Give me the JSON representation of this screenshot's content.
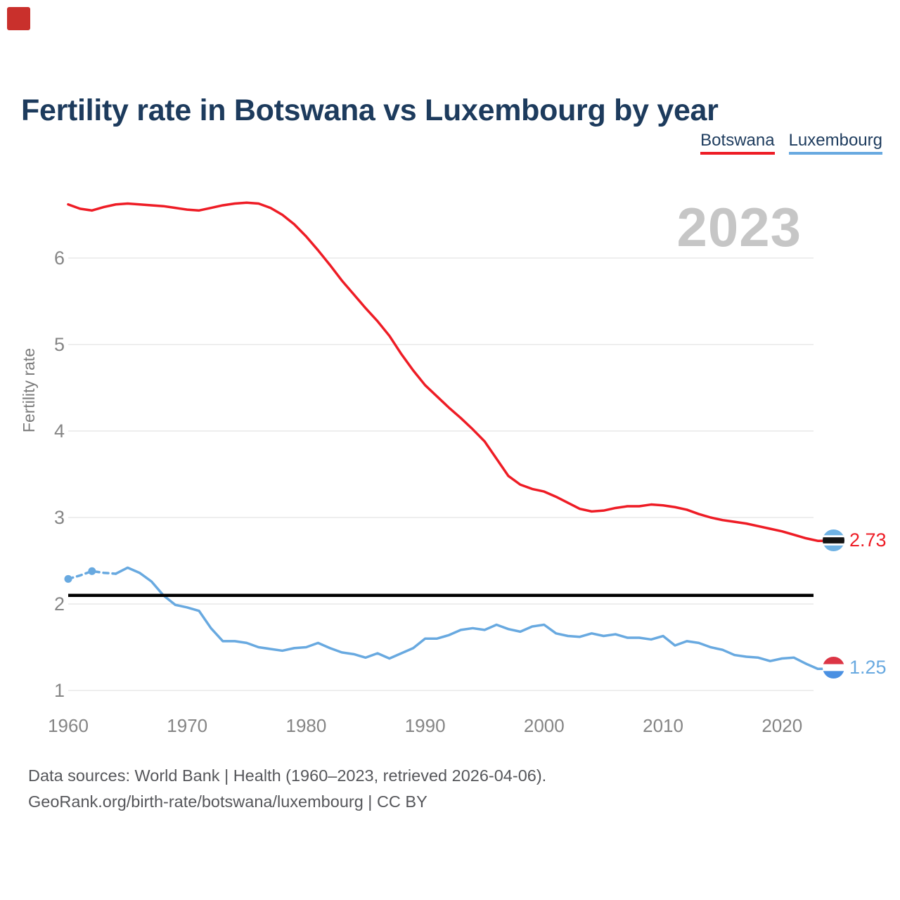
{
  "page": {
    "watermark": "2023",
    "footer": {
      "line1": "Data sources: World Bank | Health (1960–2023, retrieved 2026-04-06).",
      "line2": "GeoRank.org/birth-rate/botswana/luxembourg | CC BY"
    }
  },
  "chart_data": {
    "type": "line",
    "title": "Fertility rate in Botswana vs Luxembourg by year",
    "xlabel": "",
    "ylabel": "Fertility rate",
    "grid": "horizontal",
    "legend_position": "top-right",
    "xlim": [
      1960,
      2023
    ],
    "ylim": [
      1,
      6.8
    ],
    "xticks": [
      1960,
      1970,
      1980,
      1990,
      2000,
      2010,
      2020
    ],
    "yticks": [
      1,
      2,
      3,
      4,
      5,
      6
    ],
    "reference_line": {
      "value": 2.1,
      "color": "#000000"
    },
    "x": [
      1960,
      1961,
      1962,
      1963,
      1964,
      1965,
      1966,
      1967,
      1968,
      1969,
      1970,
      1971,
      1972,
      1973,
      1974,
      1975,
      1976,
      1977,
      1978,
      1979,
      1980,
      1981,
      1982,
      1983,
      1984,
      1985,
      1986,
      1987,
      1988,
      1989,
      1990,
      1991,
      1992,
      1993,
      1994,
      1995,
      1996,
      1997,
      1998,
      1999,
      2000,
      2001,
      2002,
      2003,
      2004,
      2005,
      2006,
      2007,
      2008,
      2009,
      2010,
      2011,
      2012,
      2013,
      2014,
      2015,
      2016,
      2017,
      2018,
      2019,
      2020,
      2021,
      2022,
      2023
    ],
    "series": [
      {
        "name": "Botswana",
        "color": "#ee1c25",
        "end_label": "2.73",
        "flag": "botswana",
        "values": [
          6.62,
          6.57,
          6.55,
          6.59,
          6.62,
          6.63,
          6.62,
          6.61,
          6.6,
          6.58,
          6.56,
          6.55,
          6.58,
          6.61,
          6.63,
          6.64,
          6.63,
          6.58,
          6.5,
          6.39,
          6.25,
          6.09,
          5.92,
          5.74,
          5.58,
          5.42,
          5.27,
          5.1,
          4.89,
          4.7,
          4.53,
          4.4,
          4.27,
          4.15,
          4.02,
          3.88,
          3.68,
          3.48,
          3.38,
          3.33,
          3.3,
          3.24,
          3.17,
          3.1,
          3.07,
          3.08,
          3.11,
          3.13,
          3.13,
          3.15,
          3.14,
          3.12,
          3.09,
          3.04,
          3.0,
          2.97,
          2.95,
          2.93,
          2.9,
          2.87,
          2.84,
          2.8,
          2.76,
          2.73
        ]
      },
      {
        "name": "Luxembourg",
        "color": "#68a9e0",
        "end_label": "1.25",
        "flag": "luxembourg",
        "dashed_until_year": 1964,
        "marker_years": [
          1960,
          1962
        ],
        "values": [
          2.29,
          2.33,
          2.38,
          2.36,
          2.35,
          2.42,
          2.36,
          2.26,
          2.1,
          1.99,
          1.96,
          1.92,
          1.72,
          1.57,
          1.57,
          1.55,
          1.5,
          1.48,
          1.46,
          1.49,
          1.5,
          1.55,
          1.49,
          1.44,
          1.42,
          1.38,
          1.43,
          1.37,
          1.43,
          1.49,
          1.6,
          1.6,
          1.64,
          1.7,
          1.72,
          1.7,
          1.76,
          1.71,
          1.68,
          1.74,
          1.76,
          1.66,
          1.63,
          1.62,
          1.66,
          1.63,
          1.65,
          1.61,
          1.61,
          1.59,
          1.63,
          1.52,
          1.57,
          1.55,
          1.5,
          1.47,
          1.41,
          1.39,
          1.38,
          1.34,
          1.37,
          1.38,
          1.31,
          1.25
        ]
      }
    ]
  }
}
